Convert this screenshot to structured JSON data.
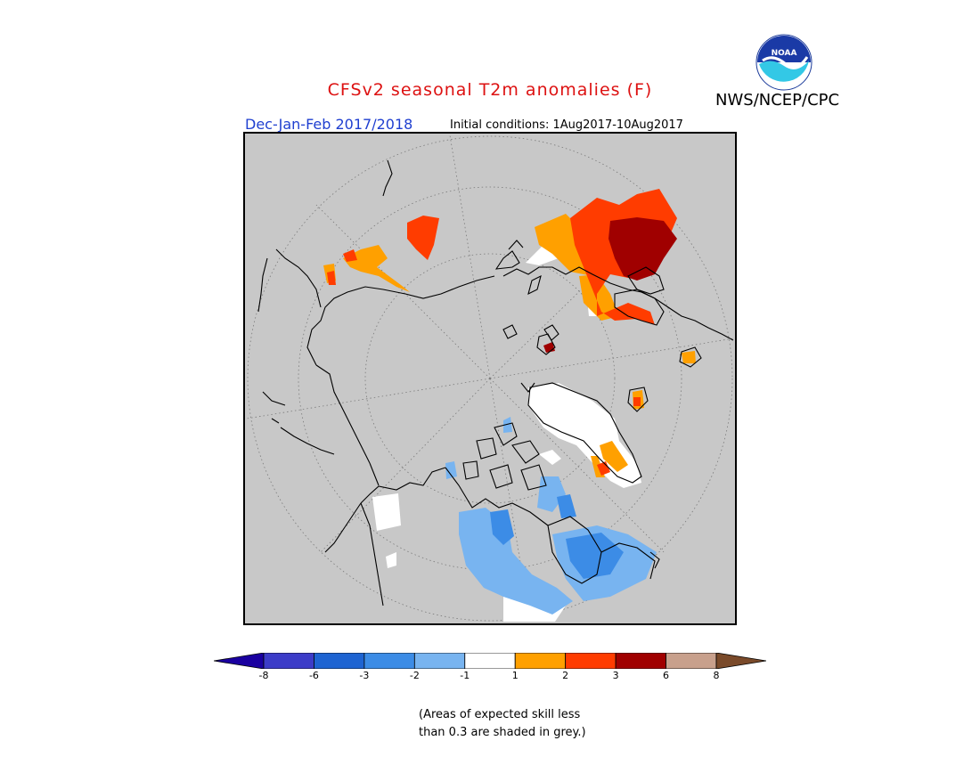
{
  "header": {
    "title": "CFSv2 seasonal T2m anomalies (F)",
    "org": "NWS/NCEP/CPC",
    "season": "Dec-Jan-Feb 2017/2018",
    "initial_conditions": "Initial conditions: 1Aug2017-10Aug2017",
    "logo_text": "NOAA"
  },
  "colors": {
    "map_background": "#c8c8c8",
    "coast": "#000000",
    "title": "#dd1111",
    "season": "#1f3fd0"
  },
  "legend": {
    "bins": [
      {
        "color": "#1a00a0"
      },
      {
        "color": "#3c3cc8"
      },
      {
        "color": "#1e64d2"
      },
      {
        "color": "#3c8ce6"
      },
      {
        "color": "#78b4f0"
      },
      {
        "color": "#ffffff"
      },
      {
        "color": "#ffa000"
      },
      {
        "color": "#ff3c00"
      },
      {
        "color": "#a00000"
      },
      {
        "color": "#c8a08c"
      },
      {
        "color": "#7a4a2a"
      }
    ],
    "tick_labels": [
      "-8",
      "-6",
      "-3",
      "-2",
      "-1",
      "1",
      "2",
      "3",
      "6",
      "8"
    ]
  },
  "note": "(Areas of expected skill less\nthan 0.3 are shaded in grey.)"
}
